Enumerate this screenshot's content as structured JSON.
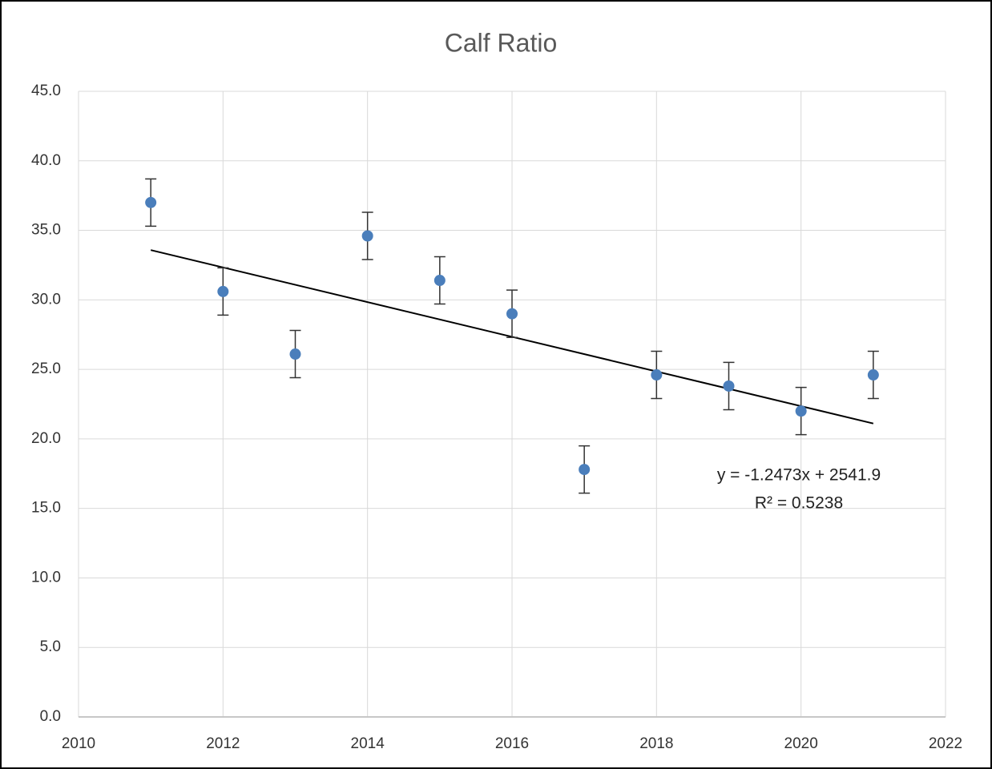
{
  "chart_data": {
    "type": "scatter",
    "title": "Calf Ratio",
    "x": [
      2011,
      2012,
      2013,
      2014,
      2015,
      2016,
      2017,
      2018,
      2019,
      2020,
      2021
    ],
    "series": [
      {
        "color": "#4a7ebb",
        "values": [
          37.0,
          30.6,
          26.1,
          34.6,
          31.4,
          29.0,
          17.8,
          24.6,
          23.8,
          22.0,
          24.6
        ],
        "errors": [
          1.7,
          1.7,
          1.7,
          1.7,
          1.7,
          1.7,
          1.7,
          1.7,
          1.7,
          1.7,
          1.7
        ]
      }
    ],
    "trendline": {
      "slope": -1.2473,
      "intercept": 2541.9,
      "color": "#000000",
      "equation": "y = -1.2473x + 2541.9",
      "r_squared": 0.5238,
      "r_squared_label": "R² = 0.5238"
    },
    "xlim": [
      2010,
      2022
    ],
    "xticks": [
      2010,
      2012,
      2014,
      2016,
      2018,
      2020,
      2022
    ],
    "ylim": [
      0,
      45
    ],
    "yticks": [
      {
        "value": 0,
        "label": "0.0"
      },
      {
        "value": 5,
        "label": "5.0"
      },
      {
        "value": 10,
        "label": "10.0"
      },
      {
        "value": 15,
        "label": "15.0"
      },
      {
        "value": 20,
        "label": "20.0"
      },
      {
        "value": 25,
        "label": "25.0"
      },
      {
        "value": 30,
        "label": "30.0"
      },
      {
        "value": 35,
        "label": "35.0"
      },
      {
        "value": 40,
        "label": "40.0"
      },
      {
        "value": 45,
        "label": "45.0"
      }
    ],
    "grid": true
  }
}
